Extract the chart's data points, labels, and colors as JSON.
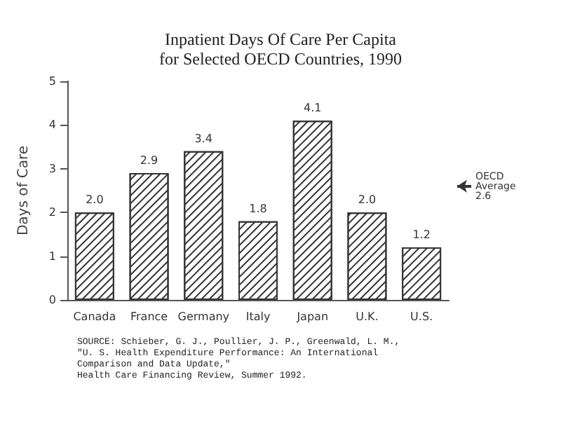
{
  "chart_data": {
    "type": "bar",
    "title": "Inpatient Days Of Care Per Capita\nfor Selected OECD Countries, 1990",
    "ylabel": "Days of Care",
    "categories": [
      "Canada",
      "France",
      "Germany",
      "Italy",
      "Japan",
      "U.K.",
      "U.S."
    ],
    "values": [
      2.0,
      2.9,
      3.4,
      1.8,
      4.1,
      2.0,
      1.2
    ],
    "color": "#333333",
    "value_labels": [
      "2.0",
      "2.9",
      "3.4",
      "1.8",
      "4.1",
      "2.0",
      "1.2"
    ],
    "ylim": [
      0,
      5
    ],
    "yticks": [
      0,
      1,
      2,
      3,
      4,
      5
    ],
    "grid": false,
    "ref_lines": [
      {
        "axis": "y",
        "value": 2.6,
        "label": "OECD\nAverage\n2.6"
      }
    ],
    "annotations": [
      "SOURCE: Schieber, G. J., Poullier, J. P., Greenwald, L. M.,\n\"U. S. Health Expenditure Performance: An International\nComparison and Data Update,\"\nHealth Care Financing Review, Summer 1992."
    ]
  }
}
